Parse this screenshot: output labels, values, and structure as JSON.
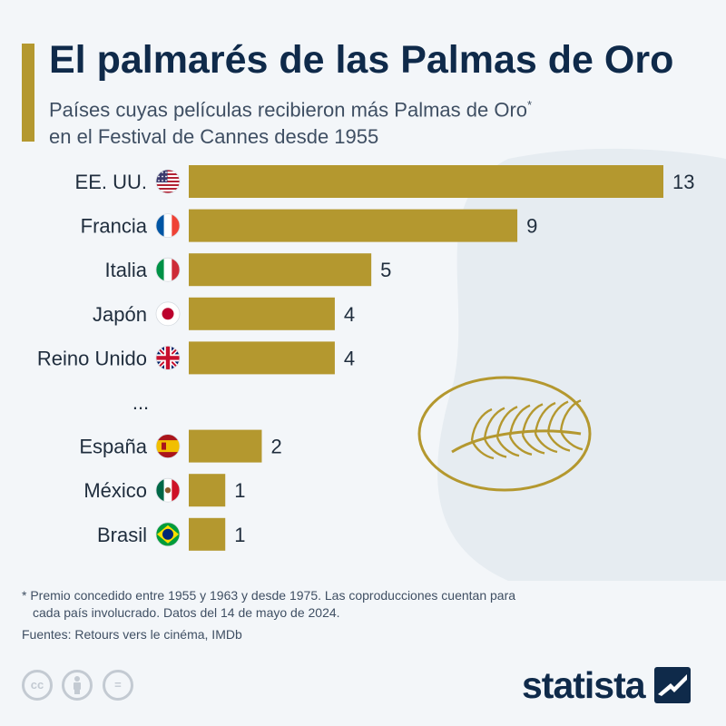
{
  "title": "El palmarés de las Palmas de Oro",
  "subtitle_line1": "Países cuyas películas recibieron más Palmas de Oro",
  "subtitle_mark": "*",
  "subtitle_line2": "en el Festival de Cannes desde 1955",
  "colors": {
    "bar": "#b4982f",
    "title": "#0f2a4a",
    "text": "#1f2d3d",
    "background": "#f3f6f9"
  },
  "chart_data": {
    "type": "bar",
    "orientation": "horizontal",
    "categories": [
      "EE. UU.",
      "Francia",
      "Italia",
      "Japón",
      "Reino Unido",
      "...",
      "España",
      "México",
      "Brasil"
    ],
    "values": [
      13,
      9,
      5,
      4,
      4,
      null,
      2,
      1,
      1
    ],
    "flags": [
      "us-flag-icon",
      "france-flag-icon",
      "italy-flag-icon",
      "japan-flag-icon",
      "uk-flag-icon",
      null,
      "spain-flag-icon",
      "mexico-flag-icon",
      "brazil-flag-icon"
    ],
    "xlim": [
      0,
      13
    ],
    "grid": false,
    "legend": "none"
  },
  "footnote_line1": "* Premio concedido entre 1955 y 1963 y desde 1975. Las coproducciones cuentan para",
  "footnote_line2": "cada país involucrado. Datos del 14 de mayo de 2024.",
  "sources": "Fuentes: Retours vers le cinéma, IMDb",
  "license_icons": [
    "cc-icon",
    "attribution-icon",
    "no-derivatives-icon"
  ],
  "license_text": [
    "cc",
    "",
    "="
  ],
  "brand": "statista"
}
